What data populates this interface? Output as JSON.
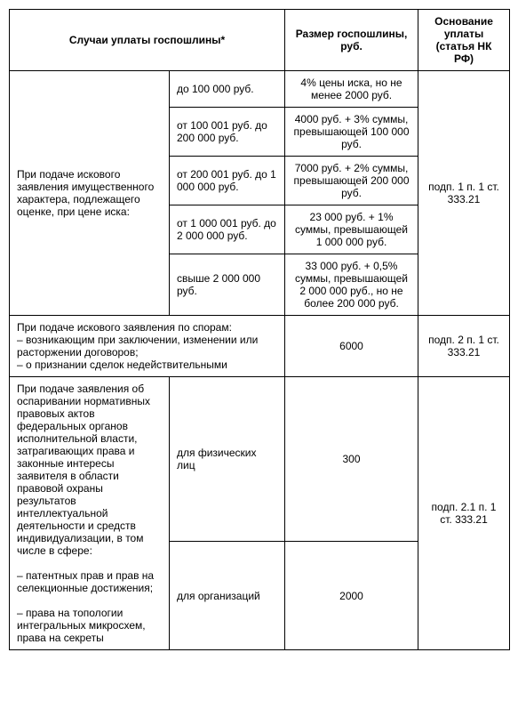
{
  "colors": {
    "border": "#000000",
    "background": "#ffffff",
    "text": "#000000"
  },
  "header": {
    "col1": "Случаи уплаты госпошлины*",
    "col2": "Размер госпошлины, руб.",
    "col3": "Основание уплаты (статья НК РФ)"
  },
  "section1": {
    "case": "При подаче искового заявления имущественного характера, подлежащего оценке, при цене иска:",
    "basis": "подп. 1 п. 1 ст. 333.21",
    "rows": [
      {
        "range": "до 100 000 руб.",
        "fee": "4% цены иска, но не менее 2000 руб."
      },
      {
        "range": "от 100 001 руб. до 200 000 руб.",
        "fee": "4000 руб. + 3% суммы, превышающей 100 000 руб."
      },
      {
        "range": "от 200 001 руб. до 1 000 000 руб.",
        "fee": "7000 руб. + 2% суммы, превышающей 200 000 руб."
      },
      {
        "range": "от 1 000 001 руб. до 2 000 000 руб.",
        "fee": "23 000 руб. + 1% суммы, превышающей 1 000 000 руб."
      },
      {
        "range": "свыше 2 000 000 руб.",
        "fee": "33 000 руб. + 0,5% суммы, превышающей 2 000 000 руб., но не более 200 000 руб."
      }
    ]
  },
  "section2": {
    "case": "При подаче искового заявления по спорам:\n– возникающим при заключении, изменении или расторжении договоров;\n– о признании сделок недействительными",
    "fee": "6000",
    "basis": "подп. 2 п. 1 ст. 333.21"
  },
  "section3": {
    "case": "При подаче заявления об оспаривании нормативных правовых актов федеральных органов исполнительной власти, затрагивающих права и законные интересы заявителя в области правовой охраны результатов интеллектуальной деятельности и средств индивидуализации, в том числе в сфере:\n\n– патентных прав и прав на селекционные достижения;\n\n– права на топологии интегральных микросхем, права на секреты",
    "basis": "подп. 2.1 п. 1 ст. 333.21",
    "rows": [
      {
        "who": "для физических лиц",
        "fee": "300"
      },
      {
        "who": "для организаций",
        "fee": "2000"
      }
    ]
  }
}
